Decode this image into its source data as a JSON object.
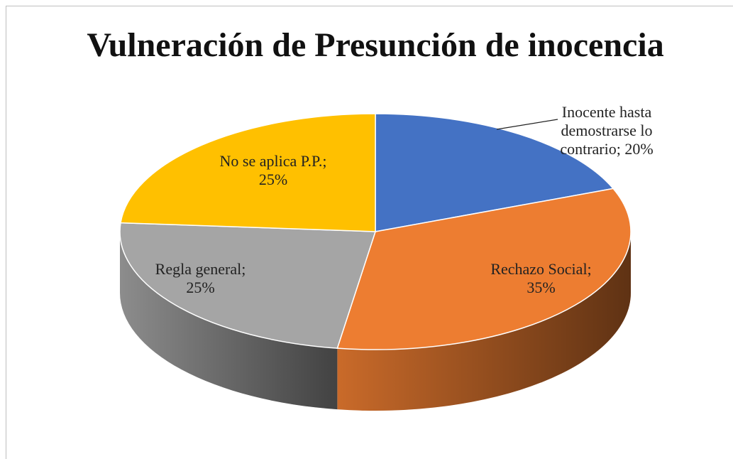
{
  "chart_data": {
    "type": "pie3d",
    "title": "Vulneración de Presunción de inocencia",
    "categories": [
      "Inocente hasta demostrarse lo contrario;",
      "Rechazo Social;",
      "Regla general;",
      "No se aplica P.P.;"
    ],
    "values": [
      20,
      35,
      25,
      25
    ],
    "value_labels": [
      "20%",
      "35%",
      "25%",
      "25%"
    ],
    "colors": [
      "#4472c4",
      "#ed7d31",
      "#a5a5a5",
      "#ffc000"
    ]
  }
}
